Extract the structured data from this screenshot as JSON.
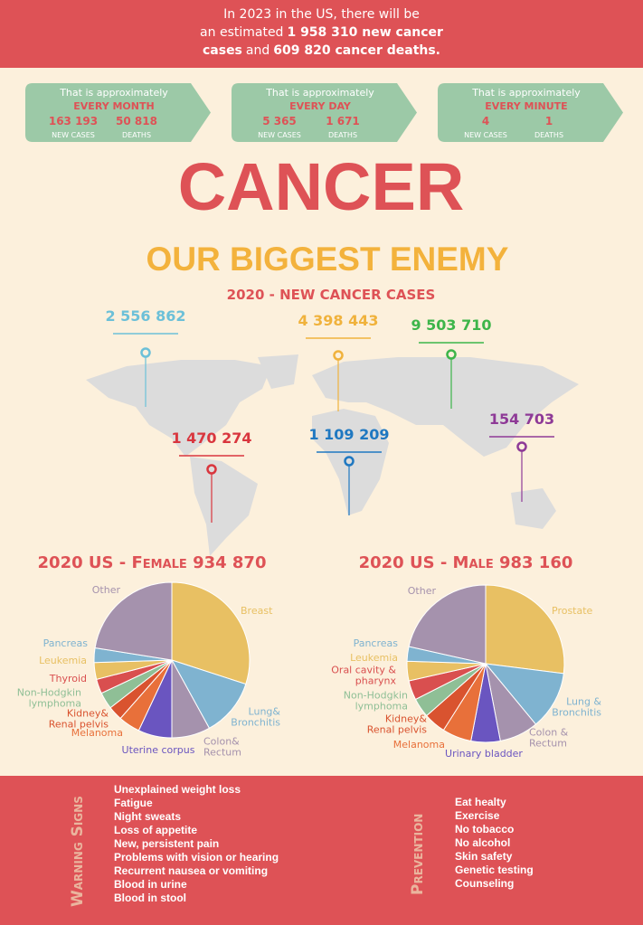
{
  "header": {
    "lines": [
      [
        "In 2023 in the US, there will be"
      ],
      [
        "an estimated",
        "1 958 310 new cancer"
      ],
      [
        "cases",
        "and",
        "609 820 cancer deaths."
      ]
    ]
  },
  "stats": [
    {
      "intro": "That is approximately",
      "period": "EVERY MONTH",
      "cases": "163 193",
      "deaths": "50 818",
      "cases_label": "NEW CASES",
      "deaths_label": "DEATHS"
    },
    {
      "intro": "That is approximately",
      "period": "EVERY DAY",
      "cases": "5 365",
      "deaths": "1 671",
      "cases_label": "NEW CASES",
      "deaths_label": "DEATHS"
    },
    {
      "intro": "That is approximately",
      "period": "EVERY MINUTE",
      "cases": "4",
      "deaths": "1",
      "cases_label": "NEW CASES",
      "deaths_label": "DEATHS"
    }
  ],
  "title": "CANCER",
  "subtitle": "OUR BIGGEST ENEMY",
  "map": {
    "title": "2020 - NEW CANCER CASES",
    "regions": [
      {
        "value": "2 556 862",
        "color": "#6cc0d8"
      },
      {
        "value": "4 398 443",
        "color": "#f0b23c"
      },
      {
        "value": "9 503 710",
        "color": "#3db54a"
      },
      {
        "value": "1 470 274",
        "color": "#d9363e"
      },
      {
        "value": "1 109 209",
        "color": "#1f78c1"
      },
      {
        "value": "154 703",
        "color": "#8e3a97"
      }
    ]
  },
  "chart_data": [
    {
      "type": "pie",
      "title": "2020 US - Female 934 870",
      "categories": [
        "Breast",
        "Lung&\nBronchitis",
        "Colon&\nRectum",
        "Uterine corpus",
        "Melanoma",
        "Kidney&\nRenal pelvis",
        "Non-Hodgkin\nlymphoma",
        "Thyroid",
        "Leukemia",
        "Pancreas",
        "Other"
      ],
      "values": [
        30,
        12,
        8,
        7,
        4.5,
        3,
        3.5,
        3,
        3.5,
        3,
        22.5
      ],
      "colors": [
        "#e8c063",
        "#7fb3d0",
        "#a592ad",
        "#6a55c0",
        "#e8703a",
        "#d9532f",
        "#8fbf96",
        "#d94f4f",
        "#e8c063",
        "#7fb3d0",
        "#a592ad"
      ]
    },
    {
      "type": "pie",
      "title": "2020 US - Male 983 160",
      "categories": [
        "Prostate",
        "Lung &\nBronchitis",
        "Colon &\nRectum",
        "Urinary bladder",
        "Melanoma",
        "Kidney&\nRenal pelvis",
        "Non-Hodgkin\nlymphoma",
        "Oral cavity &\npharynx",
        "Leukemia",
        "Pancreas",
        "Other"
      ],
      "values": [
        27,
        12,
        8,
        6,
        6,
        4.5,
        4,
        4,
        4,
        3,
        21.5
      ],
      "colors": [
        "#e8c063",
        "#7fb3d0",
        "#a592ad",
        "#6a55c0",
        "#e8703a",
        "#d9532f",
        "#8fbf96",
        "#d94f4f",
        "#e8c063",
        "#7fb3d0",
        "#a592ad"
      ]
    }
  ],
  "warning": {
    "title": "Warning Signs",
    "items": [
      "Unexplained weight loss",
      "Fatigue",
      "Night sweats",
      "Loss of appetite",
      "New, persistent pain",
      "Problems with vision or hearing",
      "Recurrent nausea or vomiting",
      "Blood in urine",
      "Blood in stool"
    ]
  },
  "prevention": {
    "title": "Prevention",
    "items": [
      "Eat healty",
      "Exercise",
      "No tobacco",
      "No alcohol",
      "Skin safety",
      "Genetic testing",
      "Counseling"
    ]
  }
}
